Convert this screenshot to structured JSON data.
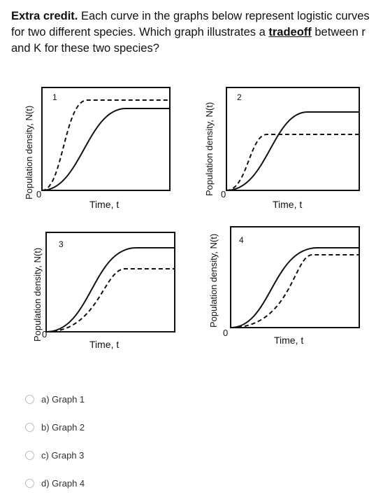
{
  "question": {
    "prefix": "Extra credit.",
    "text": " Each curve in the graphs below represent logistic curves for two different species. Which graph illustrates a ",
    "keyword": "tradeoff",
    "suffix": " between r and K for these two species?"
  },
  "graphs": [
    {
      "number": "1",
      "ylabel": "Population density, N(t)",
      "xlabel": "Time, t",
      "origin": "0"
    },
    {
      "number": "2",
      "ylabel": "Population density, N(t)",
      "xlabel": "Time, t",
      "origin": "0"
    },
    {
      "number": "3",
      "ylabel": "Population density, N(t)",
      "xlabel": "Time, t",
      "origin": "0"
    },
    {
      "number": "4",
      "ylabel": "Population density, N(t)",
      "xlabel": "Time, t",
      "origin": "0"
    }
  ],
  "options": [
    {
      "label": "a) Graph 1"
    },
    {
      "label": "b) Graph 2"
    },
    {
      "label": "c) Graph 3"
    },
    {
      "label": "d) Graph 4"
    }
  ],
  "colors": {
    "text": "#111111",
    "curve": "#111111",
    "radio_border": "#bbbbbb"
  }
}
